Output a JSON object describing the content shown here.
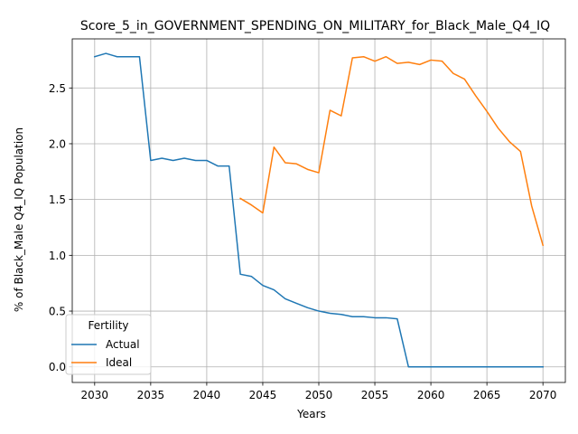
{
  "chart_data": {
    "type": "line",
    "title": "Score_5_in_GOVERNMENT_SPENDING_ON_MILITARY_for_Black_Male_Q4_IQ",
    "xlabel": "Years",
    "ylabel": "% of Black_Male Q4_IQ Population",
    "xlim": [
      2028,
      2072
    ],
    "ylim": [
      -0.14,
      2.94
    ],
    "xticks": [
      2030,
      2035,
      2040,
      2045,
      2050,
      2055,
      2060,
      2065,
      2070
    ],
    "yticks": [
      0.0,
      0.5,
      1.0,
      1.5,
      2.0,
      2.5
    ],
    "ytick_labels": [
      "0.0",
      "0.5",
      "1.0",
      "1.5",
      "2.0",
      "2.5"
    ],
    "grid": true,
    "legend": {
      "title": "Fertility",
      "placement": "lower-left"
    },
    "series": [
      {
        "name": "Actual",
        "color": "#1f77b4",
        "x": [
          2030,
          2031,
          2032,
          2033,
          2034,
          2035,
          2036,
          2037,
          2038,
          2039,
          2040,
          2041,
          2042,
          2043,
          2044,
          2045,
          2046,
          2047,
          2048,
          2049,
          2050,
          2051,
          2052,
          2053,
          2054,
          2055,
          2056,
          2057,
          2058,
          2059,
          2060,
          2061,
          2062,
          2063,
          2064,
          2065,
          2066,
          2067,
          2068,
          2069,
          2070
        ],
        "values": [
          2.78,
          2.81,
          2.78,
          2.78,
          2.78,
          1.85,
          1.87,
          1.85,
          1.87,
          1.85,
          1.85,
          1.8,
          1.8,
          0.83,
          0.81,
          0.73,
          0.69,
          0.61,
          0.57,
          0.53,
          0.5,
          0.48,
          0.47,
          0.45,
          0.45,
          0.44,
          0.44,
          0.43,
          0.0,
          0.0,
          0.0,
          0.0,
          0.0,
          0.0,
          0.0,
          0.0,
          0.0,
          0.0,
          0.0,
          0.0,
          0.0
        ]
      },
      {
        "name": "Ideal",
        "color": "#ff7f0e",
        "x": [
          2043,
          2044,
          2045,
          2046,
          2047,
          2048,
          2049,
          2050,
          2051,
          2052,
          2053,
          2054,
          2055,
          2056,
          2057,
          2058,
          2059,
          2060,
          2061,
          2062,
          2063,
          2064,
          2065,
          2066,
          2067,
          2068,
          2069,
          2070
        ],
        "values": [
          1.51,
          1.45,
          1.38,
          1.97,
          1.83,
          1.82,
          1.77,
          1.74,
          2.3,
          2.25,
          2.77,
          2.78,
          2.74,
          2.78,
          2.72,
          2.73,
          2.71,
          2.75,
          2.74,
          2.63,
          2.58,
          2.43,
          2.29,
          2.14,
          2.02,
          1.93,
          1.44,
          1.09
        ]
      }
    ]
  }
}
